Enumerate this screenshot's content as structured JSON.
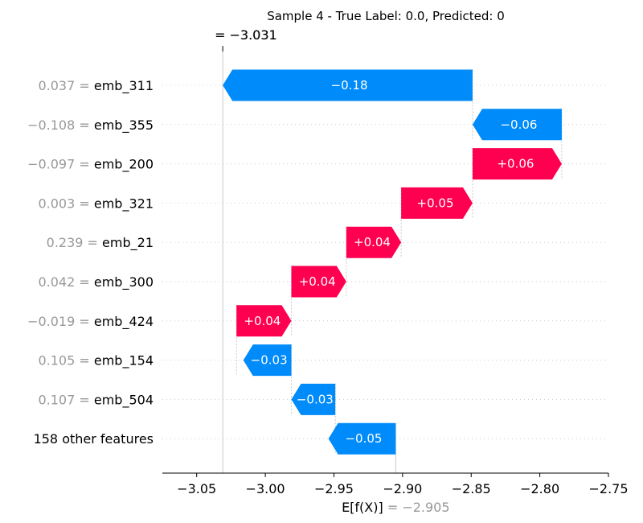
{
  "chart_data": {
    "type": "waterfall",
    "title": "Sample 4 - True Label: 0.0, Predicted: 0",
    "fx_label_prefix": "=",
    "fx_value_dark": "−3.031",
    "fx_value_light": "−3.031",
    "base_value_label_prefix": "E[f(X)]",
    "base_value_text": "= −2.905",
    "base_value": -2.905,
    "final_value": -3.031,
    "xlim": [
      -3.075,
      -2.75
    ],
    "x_ticks": [
      -3.05,
      -3.0,
      -2.95,
      -2.9,
      -2.85,
      -2.8,
      -2.75
    ],
    "x_tick_labels": [
      "−3.05",
      "−3.00",
      "−2.95",
      "−2.90",
      "−2.85",
      "−2.80",
      "−2.75"
    ],
    "positive_color": "#ff0051",
    "negative_color": "#008bfb",
    "rows": [
      {
        "value_label": "0.037 =",
        "feature": "emb_311",
        "start": -2.849,
        "end": -3.031,
        "text": "−0.18"
      },
      {
        "value_label": "−0.108 =",
        "feature": "emb_355",
        "start": -2.784,
        "end": -2.849,
        "text": "−0.06"
      },
      {
        "value_label": "−0.097 =",
        "feature": "emb_200",
        "start": -2.849,
        "end": -2.784,
        "text": "+0.06"
      },
      {
        "value_label": "0.003 =",
        "feature": "emb_321",
        "start": -2.901,
        "end": -2.849,
        "text": "+0.05"
      },
      {
        "value_label": "0.239 =",
        "feature": "emb_21",
        "start": -2.941,
        "end": -2.901,
        "text": "+0.04"
      },
      {
        "value_label": "0.042 =",
        "feature": "emb_300",
        "start": -2.981,
        "end": -2.941,
        "text": "+0.04"
      },
      {
        "value_label": "−0.019 =",
        "feature": "emb_424",
        "start": -3.021,
        "end": -2.981,
        "text": "+0.04"
      },
      {
        "value_label": "0.105 =",
        "feature": "emb_154",
        "start": -2.981,
        "end": -3.016,
        "text": "−0.03"
      },
      {
        "value_label": "0.107 =",
        "feature": "emb_504",
        "start": -2.949,
        "end": -2.981,
        "text": "−0.03"
      },
      {
        "value_label": "",
        "feature": "158 other features",
        "start": -2.905,
        "end": -2.954,
        "text": "−0.05"
      }
    ]
  }
}
